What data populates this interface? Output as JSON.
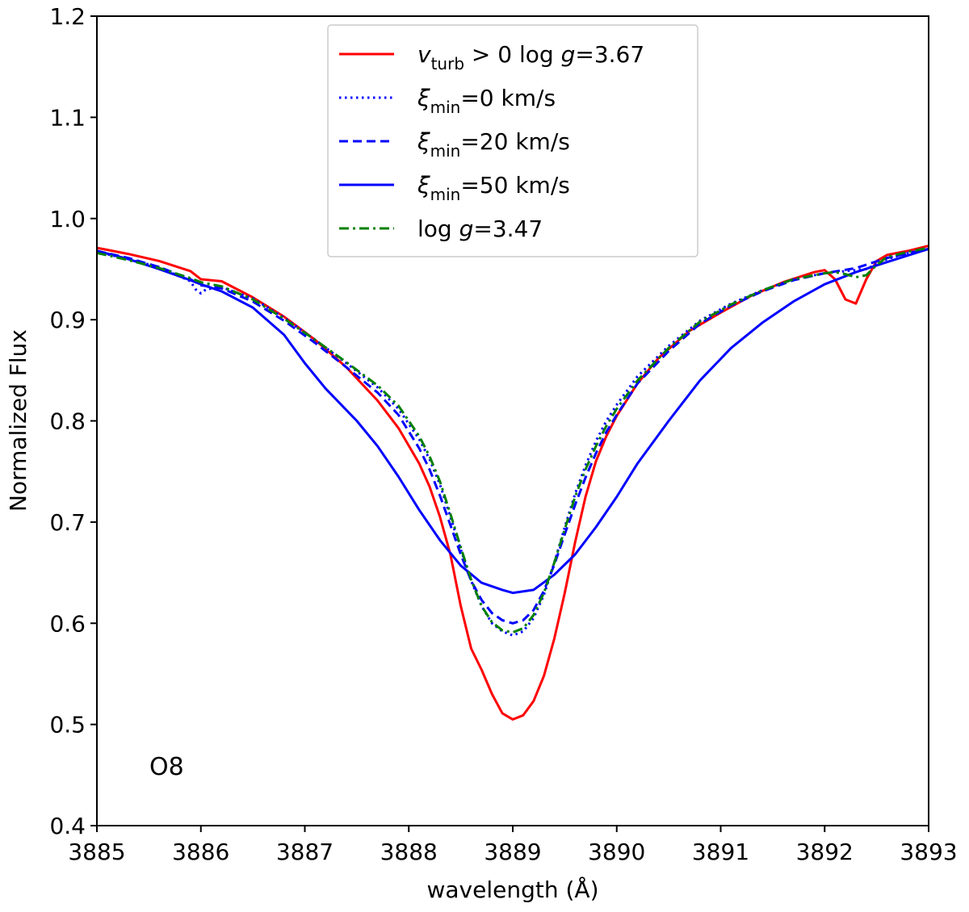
{
  "chart_data": {
    "type": "line",
    "xlabel": "wavelength (Å)",
    "ylabel": "Normalized Flux",
    "xlim": [
      3885,
      3893
    ],
    "ylim": [
      0.4,
      1.2
    ],
    "xticks": [
      3885,
      3886,
      3887,
      3888,
      3889,
      3890,
      3891,
      3892,
      3893
    ],
    "yticks": [
      0.4,
      0.5,
      0.6,
      0.7,
      0.8,
      0.9,
      1.0,
      1.1,
      1.2
    ],
    "grid": false,
    "legend_position": "top-center",
    "annotation": "O8",
    "series": [
      {
        "name": "v_turb > 0 log g=3.67",
        "legend_parts": [
          "v",
          "turb",
          " > 0 log ",
          "g",
          "=3.67"
        ],
        "color": "#ff0000",
        "style": "solid",
        "x": [
          3885.0,
          3885.3,
          3885.6,
          3885.9,
          3886.0,
          3886.1,
          3886.2,
          3886.5,
          3886.8,
          3887.1,
          3887.4,
          3887.7,
          3887.9,
          3888.1,
          3888.2,
          3888.3,
          3888.4,
          3888.5,
          3888.6,
          3888.7,
          3888.8,
          3888.9,
          3889.0,
          3889.1,
          3889.2,
          3889.3,
          3889.4,
          3889.5,
          3889.6,
          3889.7,
          3889.8,
          3889.9,
          3890.0,
          3890.2,
          3890.4,
          3890.7,
          3891.0,
          3891.3,
          3891.6,
          3891.9,
          3892.0,
          3892.1,
          3892.2,
          3892.3,
          3892.4,
          3892.5,
          3892.6,
          3892.8,
          3893.0
        ],
        "y": [
          0.971,
          0.965,
          0.958,
          0.948,
          0.94,
          0.939,
          0.938,
          0.922,
          0.903,
          0.88,
          0.853,
          0.82,
          0.793,
          0.758,
          0.735,
          0.705,
          0.668,
          0.617,
          0.575,
          0.554,
          0.53,
          0.511,
          0.505,
          0.509,
          0.523,
          0.548,
          0.585,
          0.63,
          0.68,
          0.725,
          0.76,
          0.785,
          0.805,
          0.837,
          0.862,
          0.889,
          0.907,
          0.924,
          0.937,
          0.947,
          0.949,
          0.94,
          0.92,
          0.916,
          0.94,
          0.958,
          0.964,
          0.968,
          0.973
        ]
      },
      {
        "name": "ξ_min=0 km/s",
        "legend_parts": [
          "ξ",
          "min",
          "=0 km/s"
        ],
        "color": "#0000ff",
        "style": "dotted",
        "x": [
          3885.0,
          3885.3,
          3885.6,
          3885.9,
          3885.95,
          3886.0,
          3886.05,
          3886.2,
          3886.5,
          3886.8,
          3887.1,
          3887.4,
          3887.7,
          3887.9,
          3888.1,
          3888.2,
          3888.3,
          3888.4,
          3888.5,
          3888.6,
          3888.7,
          3888.8,
          3888.9,
          3889.0,
          3889.1,
          3889.2,
          3889.3,
          3889.4,
          3889.5,
          3889.6,
          3889.7,
          3889.8,
          3889.9,
          3890.0,
          3890.2,
          3890.5,
          3890.8,
          3891.1,
          3891.4,
          3891.7,
          3892.0,
          3892.2,
          3892.4,
          3892.6,
          3892.8,
          3893.0
        ],
        "y": [
          0.967,
          0.96,
          0.952,
          0.938,
          0.93,
          0.926,
          0.93,
          0.932,
          0.921,
          0.902,
          0.88,
          0.857,
          0.833,
          0.812,
          0.782,
          0.762,
          0.737,
          0.705,
          0.673,
          0.642,
          0.617,
          0.6,
          0.592,
          0.588,
          0.592,
          0.605,
          0.628,
          0.66,
          0.695,
          0.728,
          0.756,
          0.78,
          0.8,
          0.816,
          0.844,
          0.874,
          0.899,
          0.916,
          0.929,
          0.94,
          0.946,
          0.948,
          0.95,
          0.96,
          0.966,
          0.97
        ]
      },
      {
        "name": "ξ_min=20 km/s",
        "legend_parts": [
          "ξ",
          "min",
          "=20 km/s"
        ],
        "color": "#0000ff",
        "style": "dashed",
        "x": [
          3885.0,
          3885.3,
          3885.6,
          3885.9,
          3886.0,
          3886.2,
          3886.5,
          3886.8,
          3887.1,
          3887.4,
          3887.7,
          3887.9,
          3888.1,
          3888.2,
          3888.3,
          3888.4,
          3888.5,
          3888.6,
          3888.7,
          3888.8,
          3888.9,
          3889.0,
          3889.1,
          3889.2,
          3889.3,
          3889.4,
          3889.5,
          3889.6,
          3889.7,
          3889.8,
          3889.9,
          3890.0,
          3890.2,
          3890.5,
          3890.8,
          3891.1,
          3891.4,
          3891.7,
          3892.0,
          3892.3,
          3892.6,
          3893.0
        ],
        "y": [
          0.968,
          0.961,
          0.952,
          0.94,
          0.934,
          0.931,
          0.918,
          0.899,
          0.877,
          0.853,
          0.828,
          0.806,
          0.773,
          0.752,
          0.726,
          0.697,
          0.668,
          0.642,
          0.623,
          0.61,
          0.603,
          0.6,
          0.603,
          0.613,
          0.632,
          0.658,
          0.688,
          0.717,
          0.744,
          0.768,
          0.789,
          0.806,
          0.837,
          0.869,
          0.896,
          0.914,
          0.928,
          0.939,
          0.946,
          0.951,
          0.961,
          0.97
        ]
      },
      {
        "name": "ξ_min=50 km/s",
        "legend_parts": [
          "ξ",
          "min",
          "=50 km/s"
        ],
        "color": "#0000ff",
        "style": "solid",
        "x": [
          3885.0,
          3885.3,
          3885.6,
          3885.9,
          3886.0,
          3886.2,
          3886.5,
          3886.8,
          3887.0,
          3887.2,
          3887.5,
          3887.7,
          3887.9,
          3888.1,
          3888.3,
          3888.5,
          3888.7,
          3888.9,
          3889.0,
          3889.2,
          3889.4,
          3889.6,
          3889.8,
          3890.0,
          3890.2,
          3890.5,
          3890.8,
          3891.1,
          3891.4,
          3891.7,
          3892.0,
          3892.3,
          3892.6,
          3893.0
        ],
        "y": [
          0.968,
          0.96,
          0.95,
          0.939,
          0.935,
          0.928,
          0.912,
          0.885,
          0.857,
          0.832,
          0.8,
          0.775,
          0.745,
          0.712,
          0.682,
          0.657,
          0.64,
          0.633,
          0.63,
          0.633,
          0.648,
          0.668,
          0.695,
          0.725,
          0.758,
          0.8,
          0.84,
          0.872,
          0.897,
          0.918,
          0.935,
          0.947,
          0.957,
          0.97
        ]
      },
      {
        "name": "log g=3.47",
        "legend_parts": [
          "",
          "",
          "log ",
          "g",
          "=3.47"
        ],
        "color": "#008000",
        "style": "dashdot",
        "x": [
          3885.0,
          3885.3,
          3885.6,
          3885.9,
          3886.0,
          3886.2,
          3886.5,
          3886.8,
          3887.1,
          3887.4,
          3887.7,
          3887.9,
          3888.1,
          3888.2,
          3888.3,
          3888.4,
          3888.5,
          3888.6,
          3888.7,
          3888.8,
          3888.9,
          3889.0,
          3889.1,
          3889.2,
          3889.3,
          3889.4,
          3889.5,
          3889.6,
          3889.7,
          3889.8,
          3889.9,
          3890.0,
          3890.2,
          3890.5,
          3890.8,
          3891.1,
          3891.4,
          3891.7,
          3892.0,
          3892.1,
          3892.2,
          3892.3,
          3892.4,
          3892.5,
          3892.6,
          3892.8,
          3893.0
        ],
        "y": [
          0.966,
          0.959,
          0.951,
          0.941,
          0.937,
          0.933,
          0.92,
          0.901,
          0.88,
          0.858,
          0.835,
          0.815,
          0.785,
          0.765,
          0.74,
          0.708,
          0.675,
          0.643,
          0.617,
          0.601,
          0.593,
          0.591,
          0.595,
          0.608,
          0.63,
          0.66,
          0.693,
          0.725,
          0.752,
          0.775,
          0.795,
          0.812,
          0.84,
          0.872,
          0.898,
          0.915,
          0.929,
          0.94,
          0.946,
          0.947,
          0.945,
          0.942,
          0.944,
          0.954,
          0.962,
          0.967,
          0.971
        ]
      }
    ]
  }
}
